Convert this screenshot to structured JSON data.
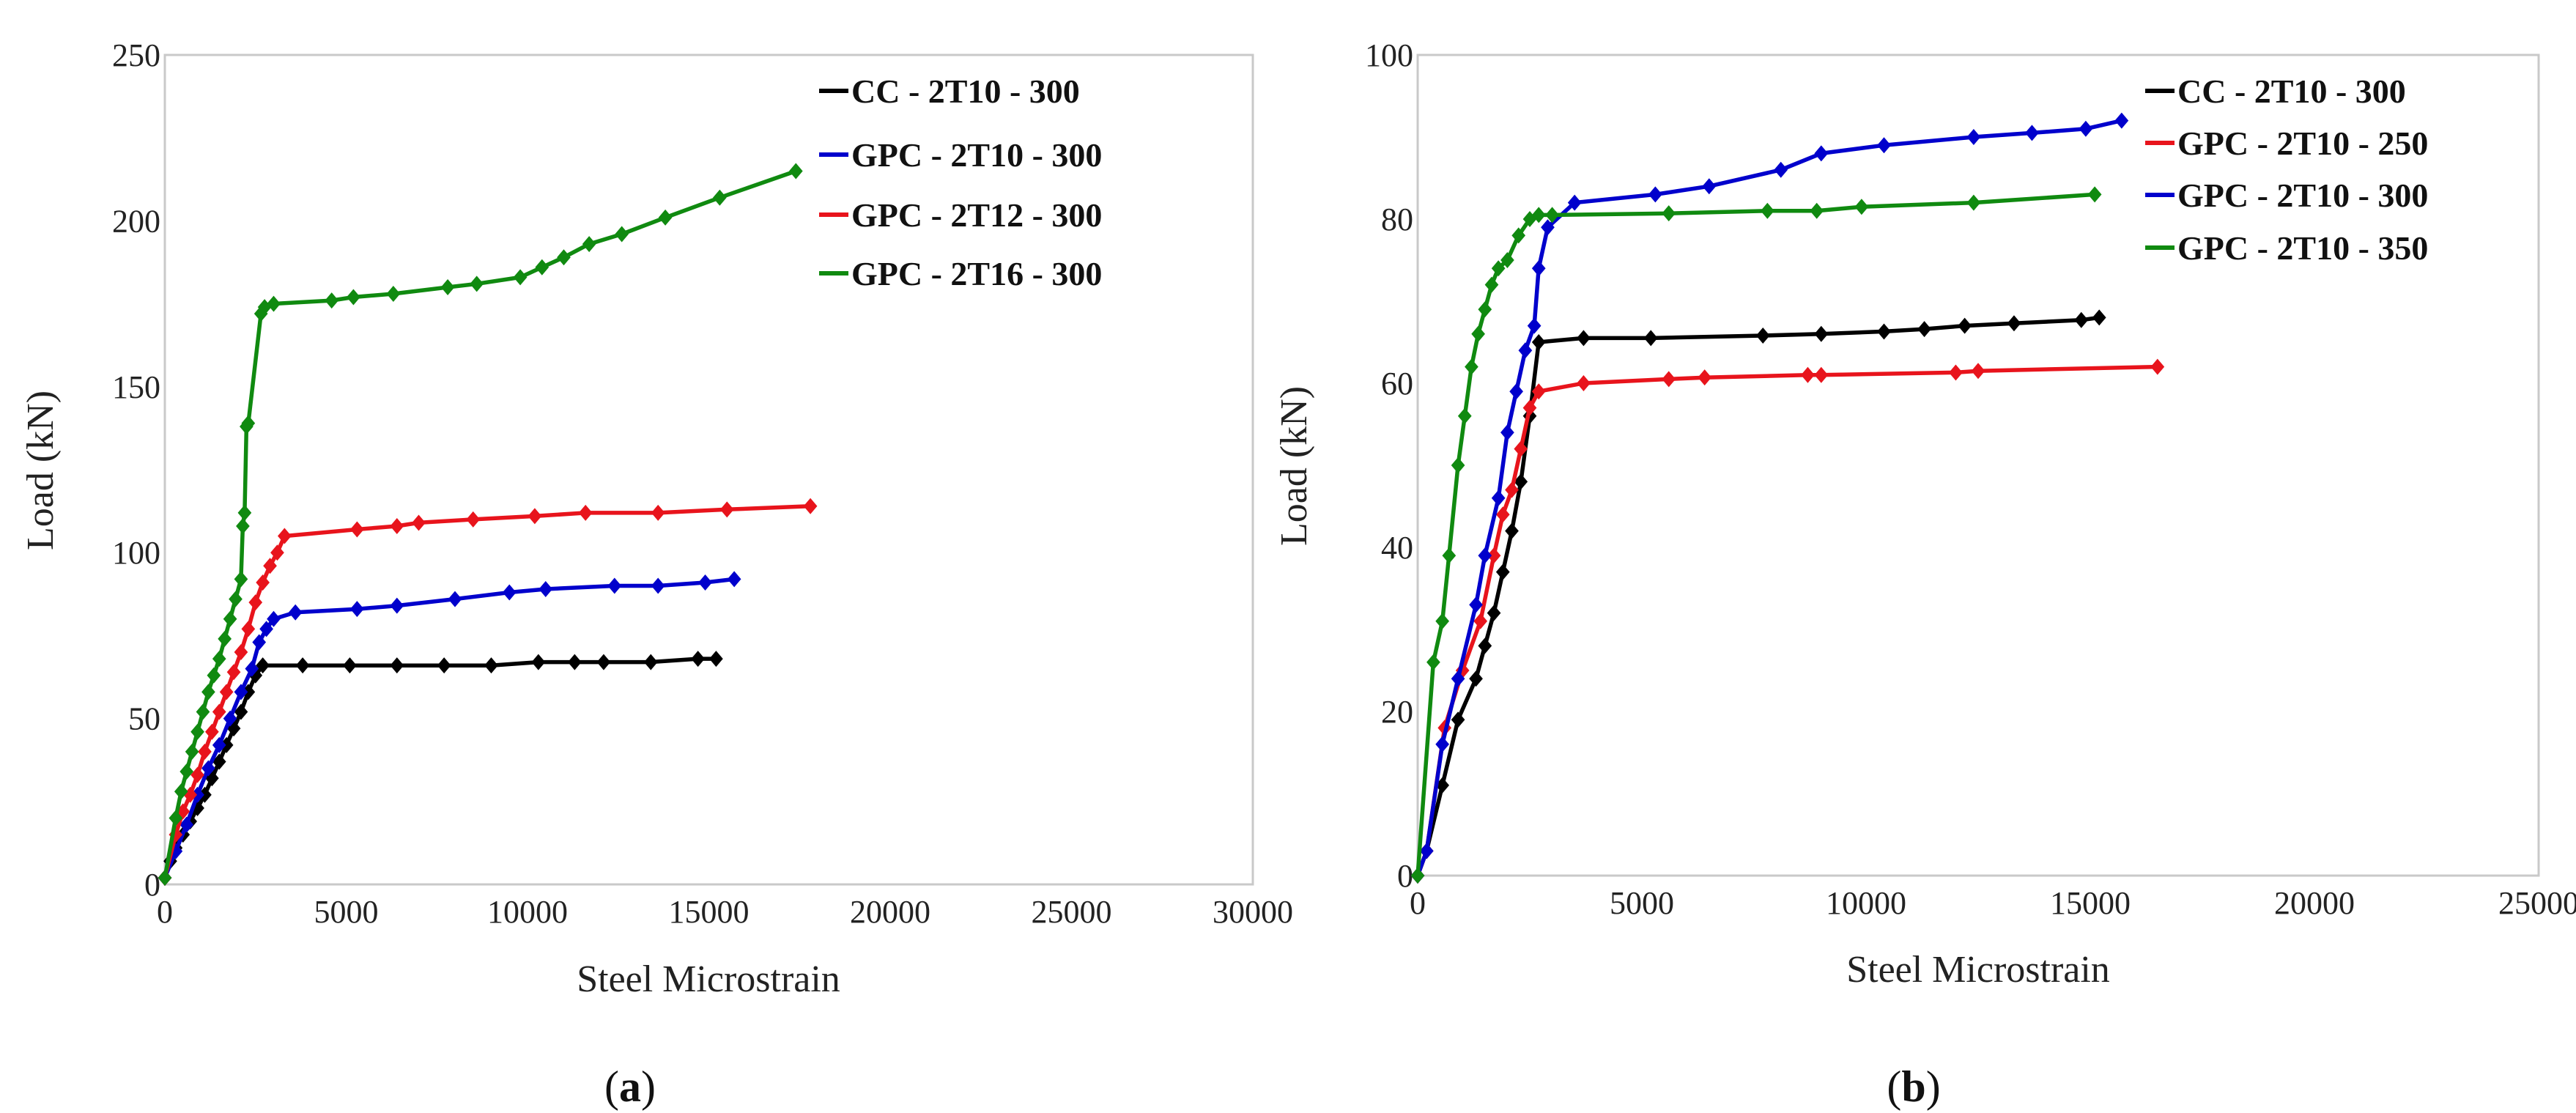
{
  "chart_data": [
    {
      "id": "a",
      "type": "line",
      "panel_label": {
        "open": "(",
        "letter": "a",
        "close": ")"
      },
      "xlabel": "Steel Microstrain",
      "ylabel": "Load (kN)",
      "xlim": [
        0,
        30000
      ],
      "ylim": [
        0,
        250
      ],
      "x_ticks": [
        0,
        5000,
        10000,
        15000,
        20000,
        25000,
        30000
      ],
      "y_ticks": [
        0,
        50,
        100,
        150,
        200,
        250
      ],
      "grid": false,
      "legend_position": "top-right",
      "series": [
        {
          "name": "CC - 2T10 - 300",
          "color": "#000000",
          "x": [
            0,
            150,
            300,
            500,
            700,
            900,
            1100,
            1300,
            1500,
            1700,
            1900,
            2100,
            2300,
            2500,
            2700,
            3800,
            5100,
            6400,
            7700,
            9000,
            10300,
            11300,
            12100,
            13400,
            14700,
            15200
          ],
          "y": [
            2,
            7,
            11,
            15,
            19,
            23,
            27,
            32,
            37,
            42,
            47,
            52,
            58,
            63,
            66,
            66,
            66,
            66,
            66,
            66,
            67,
            67,
            67,
            67,
            68,
            68
          ]
        },
        {
          "name": "GPC - 2T10 - 300",
          "color": "#0000cc",
          "x": [
            0,
            300,
            600,
            900,
            1200,
            1500,
            1800,
            2100,
            2400,
            2600,
            2800,
            3000,
            3600,
            5300,
            6400,
            8000,
            9500,
            10500,
            12400,
            13600,
            14900,
            15700
          ],
          "y": [
            2,
            10,
            18,
            27,
            35,
            42,
            50,
            58,
            65,
            73,
            77,
            80,
            82,
            83,
            84,
            86,
            88,
            89,
            90,
            90,
            91,
            92
          ]
        },
        {
          "name": "GPC - 2T12 - 300",
          "color": "#e8141c",
          "x": [
            0,
            300,
            500,
            700,
            900,
            1100,
            1300,
            1500,
            1700,
            1900,
            2100,
            2300,
            2500,
            2700,
            2900,
            3100,
            3300,
            5300,
            6400,
            7000,
            8500,
            10200,
            11600,
            13600,
            15500,
            17800
          ],
          "y": [
            2,
            15,
            22,
            27,
            33,
            40,
            46,
            52,
            58,
            64,
            70,
            77,
            85,
            91,
            96,
            100,
            105,
            107,
            108,
            109,
            110,
            111,
            112,
            112,
            113,
            114
          ]
        },
        {
          "name": "GPC - 2T16 - 300",
          "color": "#108a10",
          "x": [
            0,
            300,
            450,
            600,
            750,
            900,
            1050,
            1200,
            1350,
            1500,
            1650,
            1800,
            1950,
            2100,
            2150,
            2200,
            2250,
            2300,
            2650,
            2750,
            3000,
            4600,
            5200,
            6300,
            7800,
            8600,
            9800,
            10400,
            11000,
            11700,
            12600,
            13800,
            15300,
            17400
          ],
          "y": [
            2,
            20,
            28,
            34,
            40,
            46,
            52,
            58,
            63,
            68,
            74,
            80,
            86,
            92,
            108,
            112,
            138,
            139,
            172,
            174,
            175,
            176,
            177,
            178,
            180,
            181,
            183,
            186,
            189,
            193,
            196,
            201,
            207,
            215
          ]
        }
      ]
    },
    {
      "id": "b",
      "type": "line",
      "panel_label": {
        "open": "(",
        "letter": "b",
        "close": ")"
      },
      "xlabel": "Steel Microstrain",
      "ylabel": "Load (kN)",
      "xlim": [
        0,
        25000
      ],
      "ylim": [
        0,
        100
      ],
      "x_ticks": [
        0,
        5000,
        10000,
        15000,
        20000,
        25000
      ],
      "y_ticks": [
        0,
        20,
        40,
        60,
        80,
        100
      ],
      "grid": false,
      "legend_position": "top-right",
      "series": [
        {
          "name": "CC - 2T10 - 300",
          "color": "#000000",
          "x": [
            0,
            200,
            550,
            900,
            1300,
            1500,
            1700,
            1900,
            2100,
            2300,
            2500,
            2700,
            3700,
            5200,
            7700,
            9000,
            10400,
            11300,
            12200,
            13300,
            14800,
            15200
          ],
          "y": [
            0,
            3,
            11,
            19,
            24,
            28,
            32,
            37,
            42,
            48,
            56,
            65,
            65.5,
            65.5,
            65.8,
            66,
            66.3,
            66.6,
            67,
            67.3,
            67.7,
            68
          ]
        },
        {
          "name": "GPC - 2T10 - 250",
          "color": "#e8141c",
          "x": [
            0,
            200,
            600,
            1000,
            1400,
            1700,
            1900,
            2100,
            2300,
            2500,
            2700,
            3700,
            5600,
            6400,
            8700,
            9000,
            12000,
            12500,
            16500
          ],
          "y": [
            0,
            3,
            18,
            25,
            31,
            39,
            44,
            47,
            52,
            57,
            59,
            60,
            60.5,
            60.7,
            61,
            61,
            61.3,
            61.5,
            62
          ]
        },
        {
          "name": "GPC - 2T10 - 300",
          "color": "#0000cc",
          "x": [
            0,
            200,
            550,
            900,
            1300,
            1500,
            1800,
            2000,
            2200,
            2400,
            2600,
            2700,
            2900,
            3500,
            5300,
            6500,
            8100,
            9000,
            10400,
            12400,
            13700,
            14900,
            15700
          ],
          "y": [
            0,
            3,
            16,
            24,
            33,
            39,
            46,
            54,
            59,
            64,
            67,
            74,
            79,
            82,
            83,
            84,
            86,
            88,
            89,
            90,
            90.5,
            91,
            92
          ]
        },
        {
          "name": "GPC - 2T10 - 350",
          "color": "#108a10",
          "x": [
            0,
            350,
            550,
            700,
            900,
            1050,
            1200,
            1350,
            1500,
            1650,
            1800,
            2000,
            2250,
            2500,
            2700,
            3000,
            5600,
            7800,
            8900,
            9900,
            12400,
            15100
          ],
          "y": [
            0,
            26,
            31,
            39,
            50,
            56,
            62,
            66,
            69,
            72,
            74,
            75,
            78,
            80,
            80.5,
            80.5,
            80.7,
            81,
            81,
            81.5,
            82,
            83
          ]
        }
      ]
    }
  ]
}
